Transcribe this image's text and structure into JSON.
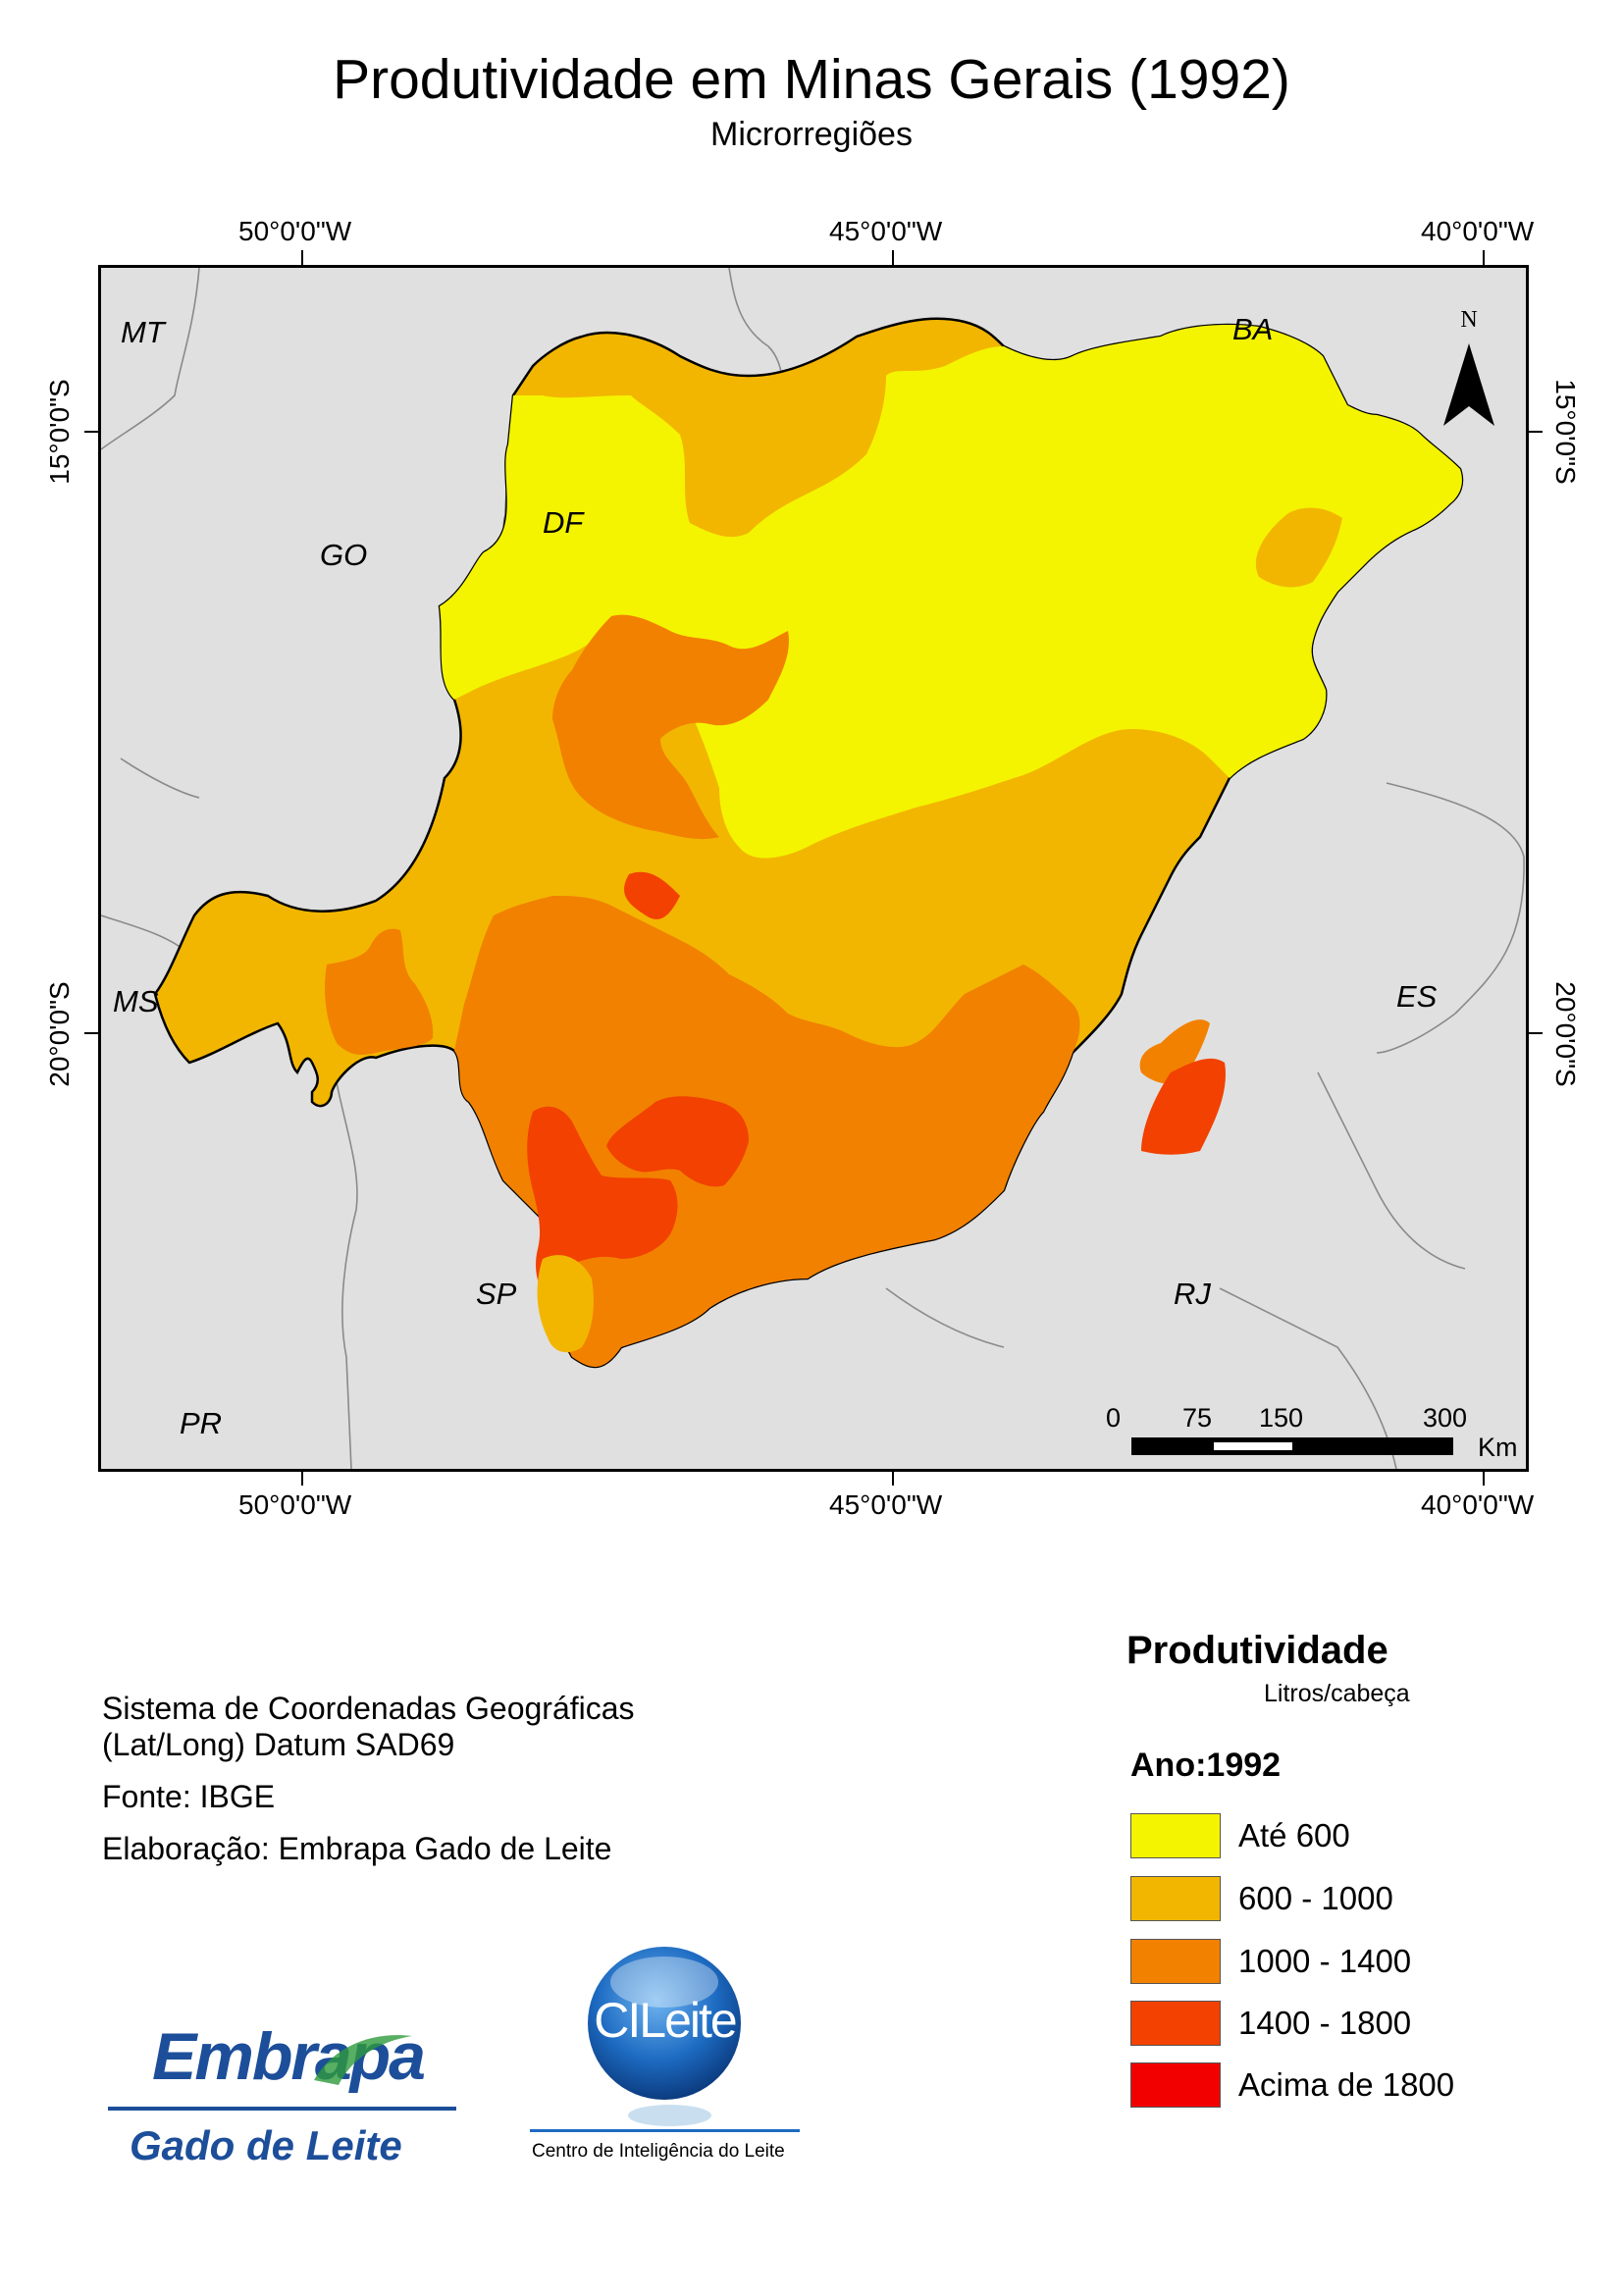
{
  "title": "Produtividade em Minas Gerais (1992)",
  "subtitle": "Microrregiões",
  "map": {
    "top_ticks": [
      "50°0'0\"W",
      "45°0'0\"W",
      "40°0'0\"W"
    ],
    "bottom_ticks": [
      "50°0'0\"W",
      "45°0'0\"W",
      "40°0'0\"W"
    ],
    "left_ticks": [
      "15°0'0\"S",
      "20°0'0\"S"
    ],
    "right_ticks": [
      "15°0'0\"S",
      "20°0'0\"S"
    ],
    "states": {
      "mt": "MT",
      "ba": "BA",
      "go": "GO",
      "df": "DF",
      "ms": "MS",
      "es": "ES",
      "sp": "SP",
      "rj": "RJ",
      "pr": "PR"
    },
    "north_label": "N",
    "north_icon": "north-arrow-icon",
    "scale": {
      "labels": [
        "0",
        "75",
        "150",
        "300"
      ],
      "unit": "Km"
    },
    "background_color": "#e0e0e0"
  },
  "legend": {
    "title": "Produtividade",
    "unit": "Litros/cabeça",
    "year": "Ano:1992",
    "classes": [
      {
        "label": "Até 600",
        "color": "#f4f400"
      },
      {
        "label": "600 - 1000",
        "color": "#f2b600"
      },
      {
        "label": "1000 - 1400",
        "color": "#f28100"
      },
      {
        "label": "1400 - 1800",
        "color": "#f24100"
      },
      {
        "label": "Acima de 1800",
        "color": "#f20000"
      }
    ]
  },
  "info": {
    "crs_line1": "Sistema de Coordenadas Geográficas",
    "crs_line2": "(Lat/Long) Datum SAD69",
    "source": "Fonte: IBGE",
    "author": "Elaboração: Embrapa Gado de Leite"
  },
  "logos": {
    "embrapa": {
      "name": "Embrapa",
      "subname": "Gado de Leite",
      "icon": "embrapa-logo"
    },
    "cileite": {
      "name": "CILeite",
      "subname": "Centro de Inteligência do Leite",
      "icon": "cileite-logo"
    }
  }
}
